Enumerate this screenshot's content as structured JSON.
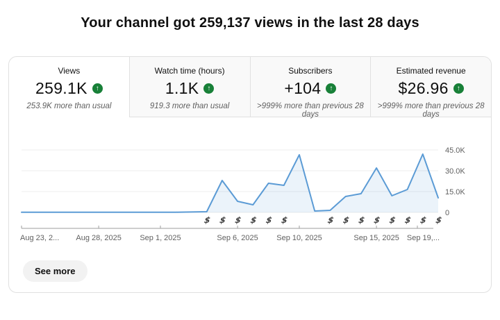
{
  "page": {
    "title": "Your channel got 259,137 views in the last 28 days"
  },
  "metrics": {
    "trend_color": "#188038",
    "trend_icon": "arrow-up-circle",
    "trend_glyph": "↑",
    "tabs": [
      {
        "label": "Views",
        "value": "259.1K",
        "delta": "253.9K more than usual",
        "active": true
      },
      {
        "label": "Watch time (hours)",
        "value": "1.1K",
        "delta": "919.3 more than usual",
        "active": false
      },
      {
        "label": "Subscribers",
        "value": "+104",
        "delta": ">999% more than previous 28 days",
        "active": false
      },
      {
        "label": "Estimated revenue",
        "value": "$26.96",
        "delta": ">999% more than previous 28 days",
        "active": false
      }
    ]
  },
  "chart_data": {
    "type": "area",
    "title": "",
    "xlabel": "",
    "ylabel": "Views",
    "grid": true,
    "legend": "none",
    "ylim": [
      0,
      45000
    ],
    "x": [
      "Aug 23, 2025",
      "Aug 24, 2025",
      "Aug 25, 2025",
      "Aug 26, 2025",
      "Aug 27, 2025",
      "Aug 28, 2025",
      "Aug 29, 2025",
      "Aug 30, 2025",
      "Aug 31, 2025",
      "Sep 1, 2025",
      "Sep 2, 2025",
      "Sep 3, 2025",
      "Sep 4, 2025",
      "Sep 5, 2025",
      "Sep 6, 2025",
      "Sep 7, 2025",
      "Sep 8, 2025",
      "Sep 9, 2025",
      "Sep 10, 2025",
      "Sep 11, 2025",
      "Sep 12, 2025",
      "Sep 13, 2025",
      "Sep 14, 2025",
      "Sep 15, 2025",
      "Sep 16, 2025",
      "Sep 17, 2025",
      "Sep 18, 2025",
      "Sep 19, 2025"
    ],
    "values": [
      150,
      150,
      150,
      150,
      150,
      150,
      150,
      150,
      150,
      150,
      150,
      300,
      500,
      23000,
      8000,
      5500,
      21000,
      19500,
      41500,
      1000,
      1500,
      11500,
      13500,
      32000,
      12000,
      16500,
      42000,
      10500
    ],
    "y_ticks": [
      {
        "label": "45.0K",
        "value": 45000
      },
      {
        "label": "30.0K",
        "value": 30000
      },
      {
        "label": "15.0K",
        "value": 15000
      },
      {
        "label": "0",
        "value": 0
      }
    ],
    "x_ticks": [
      {
        "label": "Aug 23, 2...",
        "day": 0
      },
      {
        "label": "Aug 28, 2025",
        "day": 5
      },
      {
        "label": "Sep 1, 2025",
        "day": 9
      },
      {
        "label": "Sep 6, 2025",
        "day": 14
      },
      {
        "label": "Sep 10, 2025",
        "day": 18
      },
      {
        "label": "Sep 15, 2025",
        "day": 23
      },
      {
        "label": "Sep 19,...",
        "day": 27
      }
    ],
    "monetized_day_indices": [
      12,
      13,
      14,
      15,
      16,
      17,
      20,
      21,
      22,
      23,
      24,
      25,
      26,
      27
    ],
    "money_icon": "dollar-icon",
    "line_color": "#5b9bd5",
    "fill_color": "rgba(91,155,213,0.12)",
    "gridline_color": "#ececec",
    "axis_color": "#9e9e9e"
  },
  "footer": {
    "see_more_label": "See more"
  }
}
